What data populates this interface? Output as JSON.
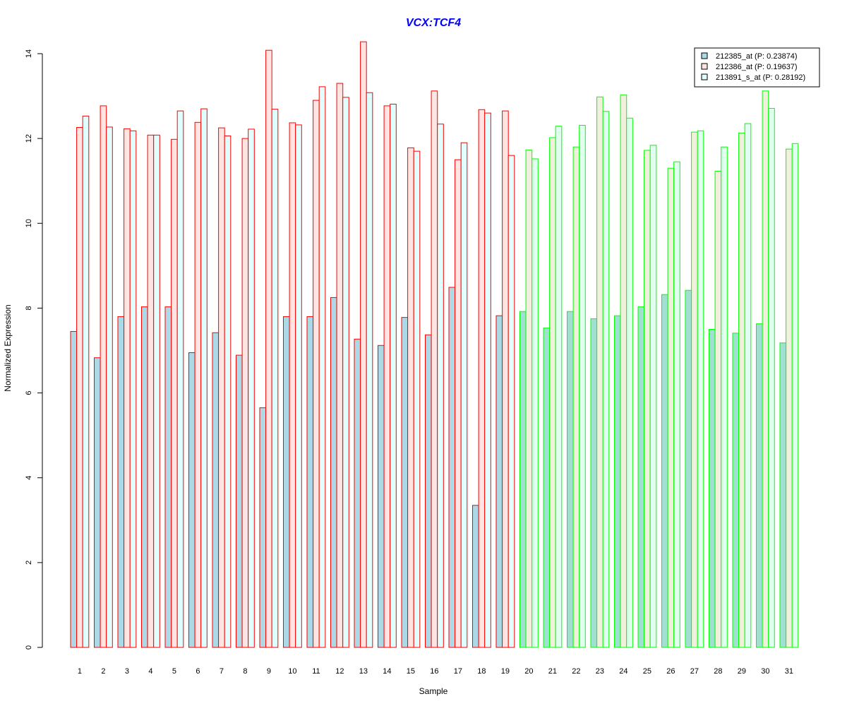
{
  "chart_data": {
    "type": "bar",
    "title": "VCX:TCF4",
    "xlabel": "Sample",
    "ylabel": "Normalized Expression",
    "ylim": [
      0,
      14
    ],
    "yticks": [
      0,
      2,
      4,
      6,
      8,
      10,
      12,
      14
    ],
    "categories": [
      "1",
      "2",
      "3",
      "4",
      "5",
      "6",
      "7",
      "8",
      "9",
      "10",
      "11",
      "12",
      "13",
      "14",
      "15",
      "16",
      "17",
      "18",
      "19",
      "20",
      "21",
      "22",
      "23",
      "24",
      "25",
      "26",
      "27",
      "28",
      "29",
      "30",
      "31"
    ],
    "group_colors": {
      "group1_border": "#ff0000",
      "group2_border": "#00ff00",
      "fill_212385": "#add8e6",
      "fill_212386": "#ffe4e1",
      "fill_213891": "#e0ffff",
      "fill_212385_g2": "#a0e0d0",
      "fill_212386_g2": "#f0f0dc",
      "fill_213891_g2": "#e0ffef",
      "title_color": "#0000ff"
    },
    "group1_count": 19,
    "series": [
      {
        "name": "212385_at (P: 0.23874)",
        "values": [
          7.45,
          6.83,
          7.8,
          8.03,
          8.03,
          6.95,
          7.42,
          6.89,
          5.65,
          7.8,
          7.8,
          8.25,
          7.27,
          7.12,
          7.78,
          7.37,
          8.49,
          3.35,
          7.82,
          7.92,
          7.53,
          7.92,
          7.75,
          7.82,
          8.03,
          8.32,
          8.42,
          7.5,
          7.41,
          7.63,
          7.18
        ]
      },
      {
        "name": "212386_at (P: 0.19637)",
        "values": [
          12.26,
          12.77,
          12.23,
          12.08,
          11.98,
          12.38,
          12.25,
          12.0,
          14.08,
          12.37,
          12.9,
          13.3,
          14.28,
          12.77,
          11.78,
          13.12,
          11.5,
          12.68,
          12.65,
          11.73,
          12.02,
          11.8,
          12.98,
          13.03,
          11.72,
          11.3,
          12.15,
          11.23,
          12.13,
          13.12,
          11.75
        ]
      },
      {
        "name": "213891_s_at (P: 0.28192)",
        "values": [
          12.53,
          12.27,
          12.18,
          12.08,
          12.65,
          12.7,
          12.06,
          12.22,
          12.69,
          12.32,
          13.22,
          12.97,
          13.08,
          12.81,
          11.7,
          12.34,
          11.9,
          12.6,
          11.6,
          11.52,
          12.29,
          12.31,
          12.64,
          12.48,
          11.84,
          11.45,
          12.18,
          11.8,
          12.35,
          12.71,
          11.88
        ]
      }
    ],
    "legend_position": "top-right",
    "grid": false
  }
}
